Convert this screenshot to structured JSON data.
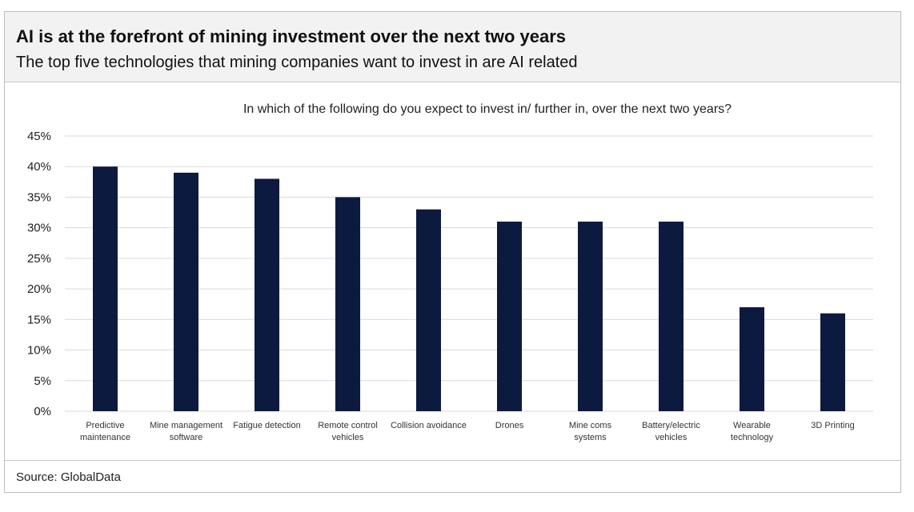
{
  "header": {
    "title": "AI is at the forefront of mining investment over the next two years",
    "subtitle": "The top five technologies that mining companies want to invest in are AI related"
  },
  "footer": {
    "source": "Source: GlobalData"
  },
  "colors": {
    "bar": "#0d1a40",
    "grid": "#d9d9d9",
    "header_bg": "#f2f2f2"
  },
  "chart_data": {
    "type": "bar",
    "title": "In which of the following do you expect to invest in/ further in, over the next two years?",
    "xlabel": "",
    "ylabel": "",
    "ylim": [
      0,
      45
    ],
    "yticks": [
      "0%",
      "5%",
      "10%",
      "15%",
      "20%",
      "25%",
      "30%",
      "35%",
      "40%",
      "45%"
    ],
    "grid": true,
    "categories": [
      [
        "Predictive",
        "maintenance"
      ],
      [
        "Mine management",
        "software"
      ],
      [
        "Fatigue detection"
      ],
      [
        "Remote control",
        "vehicles"
      ],
      [
        "Collision avoidance"
      ],
      [
        "Drones"
      ],
      [
        "Mine coms",
        "systems"
      ],
      [
        "Battery/electric",
        "vehicles"
      ],
      [
        "Wearable",
        "technology"
      ],
      [
        "3D Printing"
      ]
    ],
    "values": [
      40,
      39,
      38,
      35,
      33,
      31,
      31,
      31,
      17,
      16
    ]
  }
}
